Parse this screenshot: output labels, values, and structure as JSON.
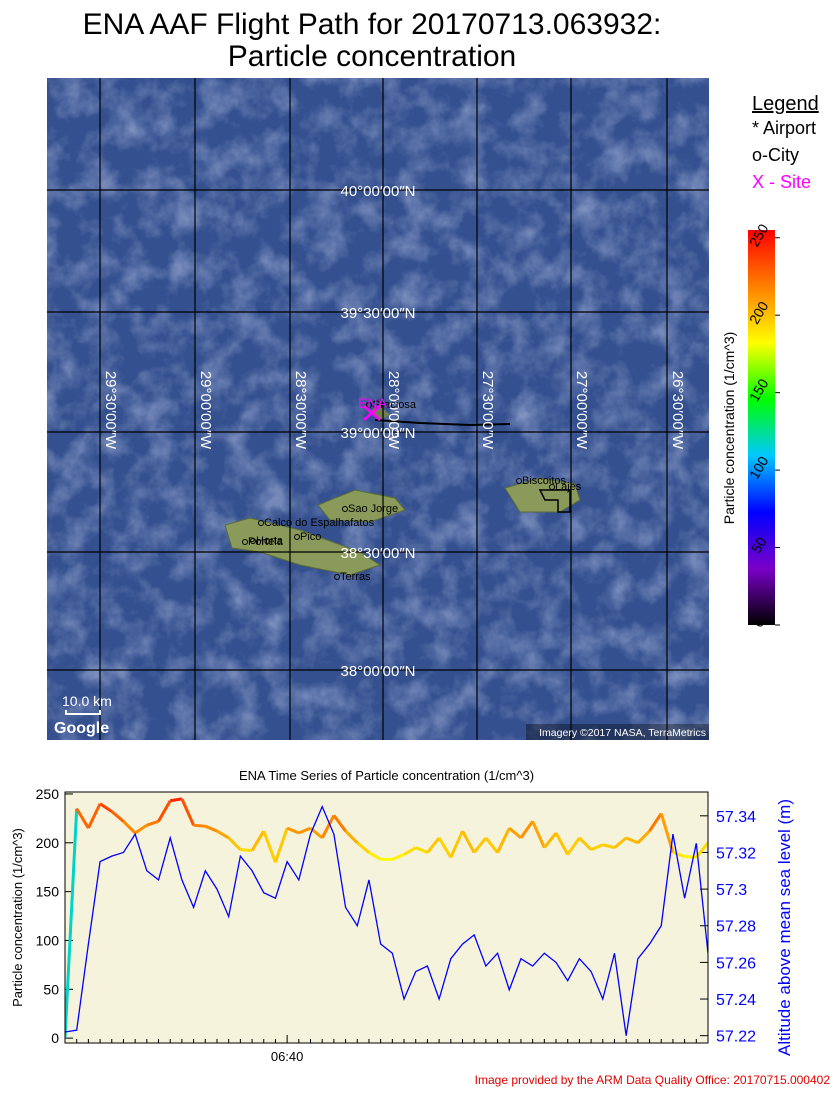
{
  "title_lines": [
    "ENA AAF Flight Path for 20170713.063932:",
    "Particle concentration"
  ],
  "map": {
    "latitudes": [
      "40°00′00″N",
      "39°30′00″N",
      "39°00′00″N",
      "38°30′00″N",
      "38°00′00″N"
    ],
    "longitudes": [
      "29°30′00″W",
      "29°00′00″W",
      "28°30′00″W",
      "28°00′00″W",
      "27°30′00″W",
      "27°00′00″W",
      "26°30′00″W"
    ],
    "places": [
      "Graciosa",
      "Biscoitos",
      "Lajes",
      "Sao Jorge",
      "Calco do Espalhafatos",
      "Portela",
      "Horta",
      "Pico",
      "Terras"
    ],
    "site_label": "ENA",
    "scale": "10.0 km",
    "brand": "Google",
    "attribution": "Imagery ©2017 NASA, TerraMetrics"
  },
  "legend": {
    "title": "Legend",
    "items": [
      "* Airport",
      "o-City",
      "X - Site"
    ],
    "colors": [
      "#000000",
      "#000000",
      "#ff00ff"
    ]
  },
  "colorbar": {
    "label": "Particle concentration  (1/cm^3)",
    "lim": [
      0,
      255
    ],
    "ticks": [
      0,
      50,
      100,
      150,
      200,
      250
    ],
    "colors": [
      "#000000",
      "#7a00c8",
      "#0000ff",
      "#00c8ff",
      "#00ff00",
      "#ffff00",
      "#ff8000",
      "#ff0000"
    ]
  },
  "chart_data": {
    "type": "line",
    "title": "ENA Time Series of Particle concentration (1/cm^3)",
    "ylabel": "Particle concentration (1/cm^3)",
    "y2label": "Altitude above mean sea level (m)",
    "categories": [
      null,
      null,
      null,
      null,
      null,
      null,
      null,
      null,
      null,
      null,
      null,
      null,
      null,
      null,
      null,
      null,
      null,
      null,
      null,
      "06:40",
      null,
      null,
      null,
      null,
      null,
      null,
      null,
      null,
      null,
      null,
      null,
      null,
      null,
      null,
      null,
      null,
      null,
      null,
      null,
      null,
      null,
      null,
      null,
      null,
      null,
      null,
      null,
      null,
      null,
      null,
      null,
      null,
      null,
      null,
      null,
      null
    ],
    "ylim": [
      -5,
      252
    ],
    "yticks": [
      0,
      50,
      100,
      150,
      200,
      250
    ],
    "y2lim": [
      57.216,
      57.353
    ],
    "y2ticks": [
      57.22,
      57.24,
      57.26,
      57.28,
      57.3,
      57.32,
      57.34
    ],
    "background": "#f6f3dc",
    "series": [
      {
        "name": "Particle concentration",
        "color": "colormap",
        "values": [
          0,
          235,
          215,
          240,
          232,
          222,
          210,
          218,
          222,
          243,
          245,
          218,
          217,
          212,
          205,
          193,
          192,
          212,
          180,
          215,
          210,
          215,
          205,
          228,
          212,
          200,
          190,
          183,
          183,
          188,
          195,
          190,
          205,
          185,
          212,
          190,
          205,
          190,
          215,
          205,
          222,
          195,
          210,
          188,
          205,
          193,
          198,
          195,
          205,
          200,
          212,
          230,
          190,
          186,
          185,
          200
        ]
      },
      {
        "name": "Altitude",
        "color": "#0000ff",
        "axis": "y2",
        "values": [
          57.222,
          57.223,
          57.27,
          57.315,
          57.318,
          57.32,
          57.33,
          57.31,
          57.305,
          57.328,
          57.305,
          57.29,
          57.31,
          57.3,
          57.285,
          57.318,
          57.31,
          57.298,
          57.295,
          57.315,
          57.305,
          57.33,
          57.345,
          57.33,
          57.29,
          57.28,
          57.305,
          57.27,
          57.265,
          57.24,
          57.255,
          57.258,
          57.24,
          57.262,
          57.27,
          57.275,
          57.258,
          57.265,
          57.245,
          57.262,
          57.258,
          57.265,
          57.26,
          57.25,
          57.262,
          57.255,
          57.24,
          57.265,
          57.22,
          57.262,
          57.27,
          57.28,
          57.33,
          57.295,
          57.325,
          57.265
        ]
      }
    ]
  },
  "footer": "Image provided by the ARM Data Quality Office: 20170715.000402"
}
